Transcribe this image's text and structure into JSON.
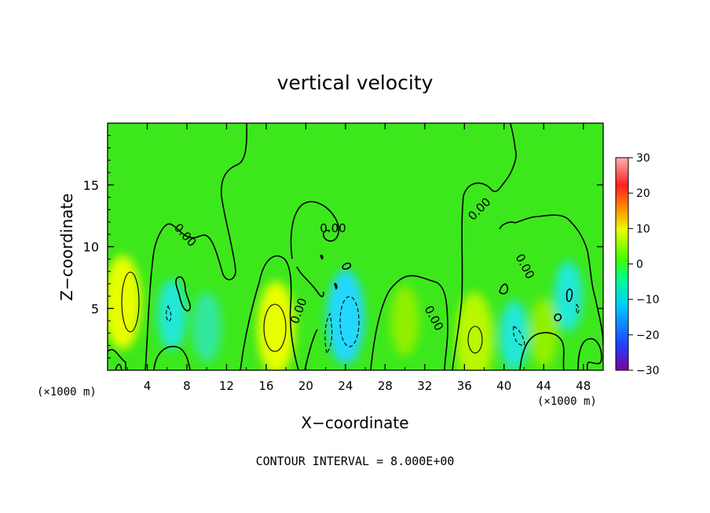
{
  "chart_data": {
    "type": "heatmap",
    "title": "vertical velocity",
    "xlabel": "X−coordinate",
    "ylabel": "Z−coordinate",
    "x_unit_left": "(×1000 m)",
    "x_unit_right": "(×1000 m)",
    "xlim": [
      0,
      50
    ],
    "ylim": [
      0,
      20
    ],
    "x_ticks": [
      4,
      8,
      12,
      16,
      20,
      24,
      28,
      32,
      36,
      40,
      44,
      48
    ],
    "x_tick_labels": [
      "4",
      "8",
      "12",
      "16",
      "20",
      "24",
      "28",
      "32",
      "36",
      "40",
      "44",
      "48"
    ],
    "y_ticks": [
      5,
      10,
      15
    ],
    "y_tick_labels": [
      "5",
      "10",
      "15"
    ],
    "colorbar": {
      "range": [
        -30,
        30
      ],
      "ticks": [
        30,
        20,
        10,
        0,
        -10,
        -20,
        -30
      ],
      "tick_labels": [
        "30",
        "20",
        "10",
        "0",
        "−10",
        "−20",
        "−30"
      ],
      "colors": [
        "#8000a0",
        "#2040ff",
        "#00c8ff",
        "#00ff90",
        "#40ff00",
        "#e8ff00",
        "#ff9000",
        "#ff2020",
        "#ffb0b0"
      ]
    },
    "contour_labels": [
      "0.00",
      "0.00",
      "0.00",
      "0.00",
      "0.00",
      "0.00"
    ],
    "footer": "CONTOUR INTERVAL = 8.000E+00",
    "features": [
      {
        "x": 1.5,
        "z": 5.5,
        "w": 12
      },
      {
        "x": 17,
        "z": 3.4,
        "w": 12
      },
      {
        "x": 37,
        "z": 2.5,
        "w": 9
      },
      {
        "x": 24,
        "z": 4.3,
        "w": -9
      },
      {
        "x": 6.5,
        "z": 4.5,
        "w": -7
      },
      {
        "x": 41,
        "z": 2.8,
        "w": -7
      },
      {
        "x": 10,
        "z": 3.5,
        "w": -4
      },
      {
        "x": 46.5,
        "z": 6,
        "w": -5
      },
      {
        "x": 30,
        "z": 4,
        "w": 4
      },
      {
        "x": 44,
        "z": 3,
        "w": 3
      }
    ]
  }
}
